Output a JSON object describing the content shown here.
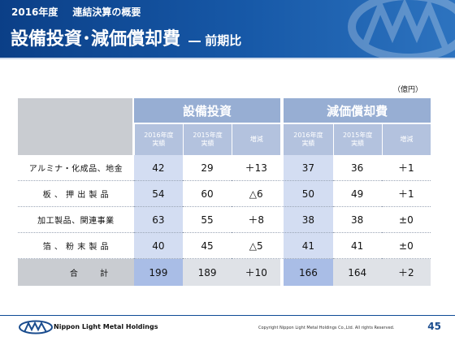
{
  "header": {
    "year": "2016年度",
    "section": "連結決算の概要",
    "title": "設備投資･減価償却費",
    "title_suffix": "― 前期比"
  },
  "unit": "（億円）",
  "table": {
    "groups": [
      "設備投資",
      "減価償却費"
    ],
    "subheaders": [
      [
        "2016年度",
        "実績"
      ],
      [
        "2015年度",
        "実績"
      ],
      [
        "増減"
      ],
      [
        "2016年度",
        "実績"
      ],
      [
        "2015年度",
        "実績"
      ],
      [
        "増減"
      ]
    ],
    "rows": [
      {
        "label": "アルミナ・化成品、地金",
        "values": [
          "42",
          "29",
          "＋13",
          "37",
          "36",
          "＋1"
        ]
      },
      {
        "label": "板 、 押 出 製 品",
        "values": [
          "54",
          "60",
          "△6",
          "50",
          "49",
          "＋1"
        ]
      },
      {
        "label": "加工製品、関連事業",
        "values": [
          "63",
          "55",
          "＋8",
          "38",
          "38",
          "±0"
        ]
      },
      {
        "label": "箔 、 粉 末 製 品",
        "values": [
          "40",
          "45",
          "△5",
          "41",
          "41",
          "±0"
        ]
      }
    ],
    "total": {
      "label_left": "合",
      "label_right": "計",
      "values": [
        "199",
        "189",
        "＋10",
        "166",
        "164",
        "＋2"
      ]
    }
  },
  "footer": {
    "logo": "nlm-logo",
    "company": "Nippon Light Metal Holdings",
    "copyright": "Copyright Nippon Light Metal Holdings Co.,Ltd. All rights Reserved.",
    "page": "45"
  },
  "colors": {
    "header": "#1759a8",
    "group_header": "#97aed3",
    "sub_header": "#b3c2de",
    "current_year_cell": "#d3ddf2",
    "total_current_cell": "#a9bde6",
    "row_label_bg": "#c9ccd1"
  }
}
